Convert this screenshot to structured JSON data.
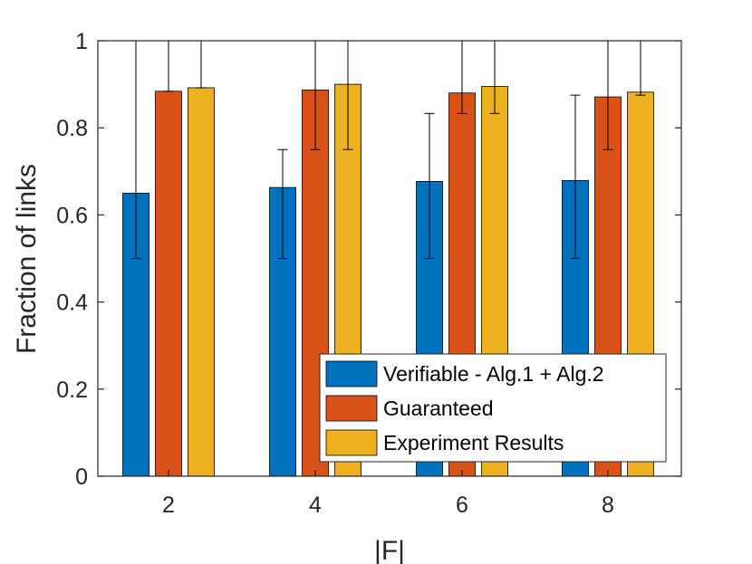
{
  "chart_data": {
    "type": "bar",
    "title": "",
    "xlabel": "|F|",
    "ylabel": "Fraction of links",
    "categories": [
      "2",
      "4",
      "6",
      "8"
    ],
    "ylim": [
      0,
      1
    ],
    "yticks": [
      0,
      0.2,
      0.4,
      0.6,
      0.8,
      1
    ],
    "ytick_labels": [
      "0",
      "0.2",
      "0.4",
      "0.6",
      "0.8",
      "1"
    ],
    "series": [
      {
        "name": "Verifiable - Alg.1 + Alg.2",
        "color": "#0072BD",
        "values": [
          0.65,
          0.663,
          0.677,
          0.679
        ],
        "err_low": [
          0.5,
          0.5,
          0.5,
          0.5
        ],
        "err_high": [
          1.0,
          0.75,
          0.833,
          0.875
        ]
      },
      {
        "name": "Guaranteed",
        "color": "#D95319",
        "values": [
          0.884,
          0.887,
          0.88,
          0.871
        ],
        "err_low": [
          0.884,
          0.75,
          0.833,
          0.75
        ],
        "err_high": [
          1.0,
          1.0,
          1.0,
          1.0
        ]
      },
      {
        "name": "Experiment Results",
        "color": "#EDB120",
        "values": [
          0.892,
          0.9,
          0.895,
          0.882
        ],
        "err_low": [
          0.892,
          0.75,
          0.833,
          0.875
        ],
        "err_high": [
          1.0,
          1.0,
          1.0,
          1.0
        ]
      }
    ],
    "legend_position": "bottom-right",
    "grid": false
  }
}
